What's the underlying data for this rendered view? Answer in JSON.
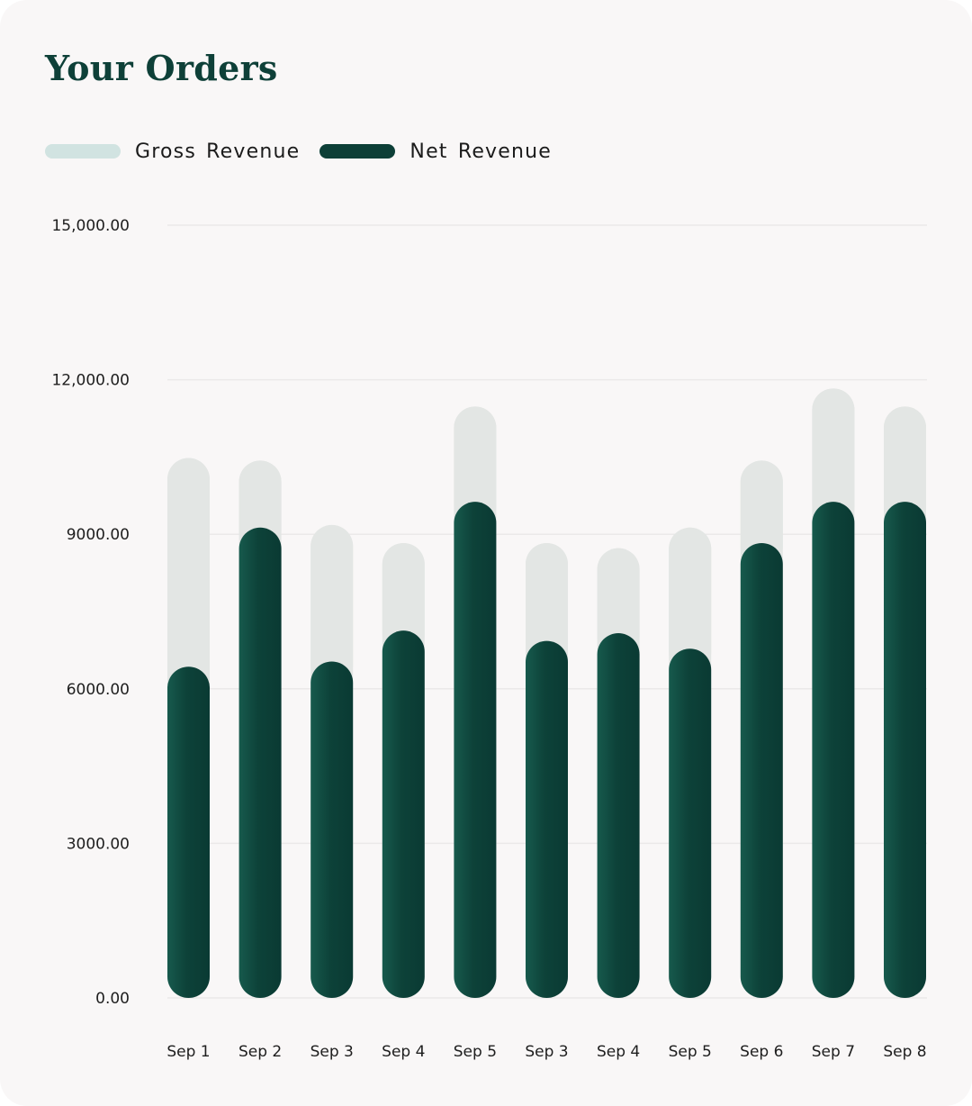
{
  "chart_data": {
    "type": "bar",
    "title": "Your Orders",
    "categories": [
      "Sep 1",
      "Sep 2",
      "Sep 3",
      "Sep 4",
      "Sep 5",
      "Sep 3",
      "Sep 4",
      "Sep 5",
      "Sep 6",
      "Sep 7",
      "Sep 8"
    ],
    "series": [
      {
        "name": "Gross Revenue",
        "color": "#e3e6e4",
        "legend_color": "#d1e3e1",
        "values": [
          10200,
          10150,
          8900,
          8550,
          11200,
          8550,
          8450,
          8850,
          10150,
          11550,
          11200
        ]
      },
      {
        "name": "Net Revenue",
        "color": "#0d3f37",
        "values": [
          6150,
          8850,
          6250,
          6850,
          9350,
          6650,
          6800,
          6500,
          8550,
          9350,
          9350
        ]
      }
    ],
    "y_ticks": [
      {
        "value": 0,
        "label": "0.00"
      },
      {
        "value": 3000,
        "label": "3000.00"
      },
      {
        "value": 6000,
        "label": "6000.00"
      },
      {
        "value": 9000,
        "label": "9000.00"
      },
      {
        "value": 12000,
        "label": "12,000.00"
      },
      {
        "value": 15000,
        "label": "15,000.00"
      }
    ],
    "ylim": [
      0,
      15000
    ],
    "grid": true,
    "legend_position": "top-left",
    "bar_style": "overlapped-rounded"
  },
  "colors": {
    "title": "#0e4038",
    "background": "#f9f7f7",
    "overlap_highlight": "#ccd8d5",
    "gridline": "#ebe9e9"
  }
}
